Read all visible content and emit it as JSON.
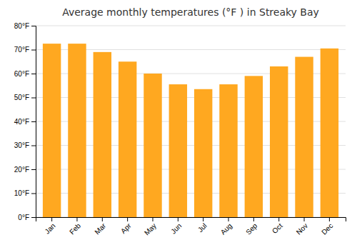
{
  "chart_data": {
    "type": "bar",
    "title": "Average monthly temperatures (°F ) in Streaky Bay",
    "categories": [
      "Jan",
      "Feb",
      "Mar",
      "Apr",
      "May",
      "Jun",
      "Jul",
      "Aug",
      "Sep",
      "Oct",
      "Nov",
      "Dec"
    ],
    "values": [
      72.5,
      72.5,
      69.0,
      65.0,
      60.0,
      55.5,
      53.5,
      55.5,
      59.0,
      63.0,
      67.0,
      70.5
    ],
    "color": "#FFA820",
    "ylim": [
      0,
      80
    ],
    "yticks": [
      {
        "value": 0,
        "label": "0°F"
      },
      {
        "value": 10,
        "label": "10°F"
      },
      {
        "value": 20,
        "label": "20°F"
      },
      {
        "value": 30,
        "label": "30°F"
      },
      {
        "value": 40,
        "label": "40°F"
      },
      {
        "value": 50,
        "label": "50°F"
      },
      {
        "value": 60,
        "label": "60°F"
      },
      {
        "value": 70,
        "label": "70°F"
      },
      {
        "value": 80,
        "label": "80°F"
      }
    ],
    "grid": true
  }
}
